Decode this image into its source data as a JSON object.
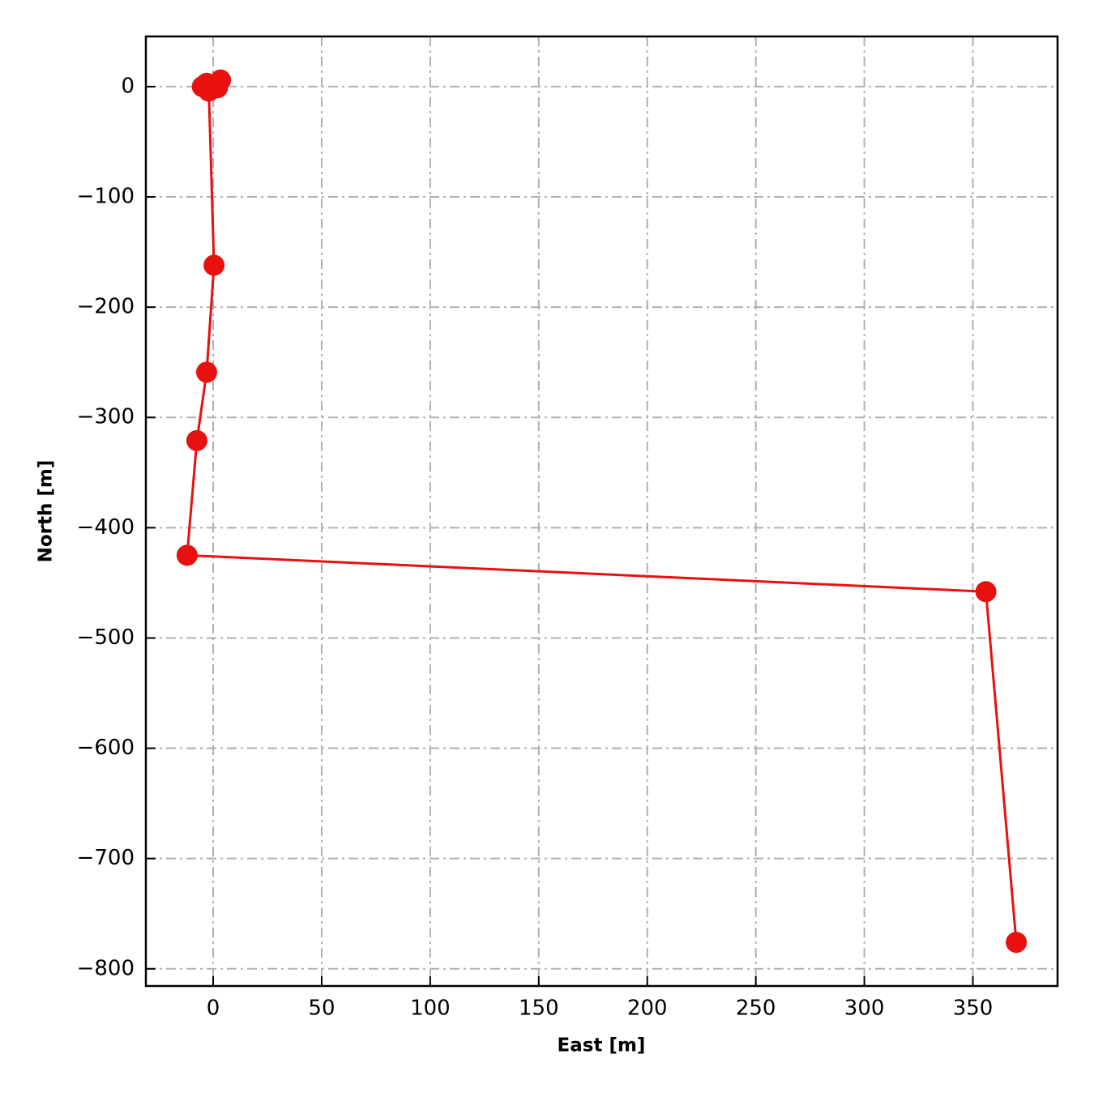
{
  "chart_data": {
    "type": "line",
    "xlabel": "East [m]",
    "ylabel": "North [m]",
    "x": [
      -5,
      -3,
      0,
      3.4,
      2,
      -2,
      0.4,
      -3,
      -7.5,
      -12,
      356,
      370
    ],
    "series": [
      {
        "color": "#e8110f",
        "values": [
          0,
          3,
          0,
          6,
          -1,
          -4,
          -162,
          -259,
          -321,
          -425,
          -458,
          -776
        ]
      }
    ],
    "xlim": [
      -31,
      389
    ],
    "ylim": [
      -815.6,
      45.5
    ],
    "xticks": [
      0,
      50,
      100,
      150,
      200,
      250,
      300,
      350
    ],
    "yticks": [
      0,
      {
        "value": -100,
        "label": "−100"
      },
      {
        "value": -200,
        "label": "−200"
      },
      {
        "value": -300,
        "label": "−300"
      },
      {
        "value": -400,
        "label": "−400"
      },
      {
        "value": -500,
        "label": "−500"
      },
      {
        "value": -600,
        "label": "−600"
      },
      {
        "value": -700,
        "label": "−700"
      },
      {
        "value": -800,
        "label": "−800"
      }
    ],
    "grid": true
  }
}
